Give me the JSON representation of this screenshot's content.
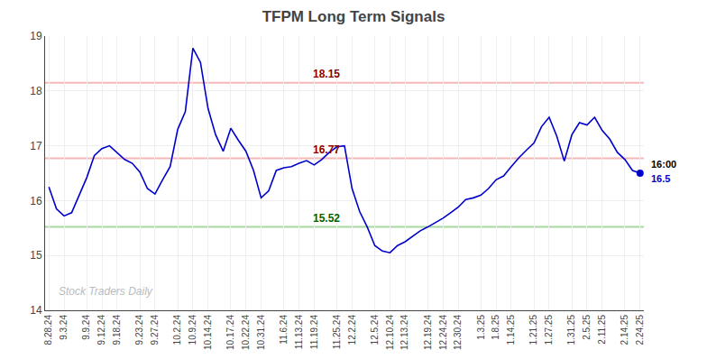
{
  "chart_data": {
    "type": "line",
    "title": "TFPM Long Term Signals",
    "categories": [
      "8.28.24",
      null,
      "9.3.24",
      null,
      null,
      "9.9.24",
      null,
      "9.12.24",
      null,
      "9.18.24",
      null,
      null,
      "9.23.24",
      null,
      "9.27.24",
      null,
      null,
      "10.2.24",
      null,
      "10.9.24",
      null,
      "10.14.24",
      null,
      null,
      "10.17.24",
      null,
      "10.22.24",
      null,
      "10.31.24",
      null,
      null,
      "11.6.24",
      null,
      "11.13.24",
      null,
      "11.19.24",
      null,
      null,
      "11.25.24",
      null,
      "12.2.24",
      null,
      null,
      "12.5.24",
      null,
      "12.10.24",
      null,
      "12.13.24",
      null,
      null,
      "12.19.24",
      null,
      "12.24.24",
      null,
      "12.30.24",
      null,
      null,
      "1.3.25",
      null,
      "1.8.25",
      null,
      "1.14.25",
      null,
      null,
      "1.21.25",
      null,
      "1.27.25",
      null,
      null,
      "1.31.25",
      null,
      "2.5.25",
      null,
      "2.11.25",
      null,
      null,
      "2.14.25",
      null,
      "2.24.25"
    ],
    "values": [
      16.25,
      15.85,
      15.72,
      15.78,
      16.1,
      16.42,
      16.82,
      16.95,
      17.0,
      16.88,
      16.75,
      16.68,
      16.52,
      16.22,
      16.12,
      16.38,
      16.62,
      17.3,
      17.62,
      18.78,
      18.52,
      17.68,
      17.2,
      16.9,
      17.32,
      17.1,
      16.9,
      16.55,
      16.05,
      16.18,
      16.55,
      16.6,
      16.62,
      16.68,
      16.73,
      16.65,
      16.75,
      16.88,
      16.98,
      17.0,
      16.22,
      15.8,
      15.52,
      15.18,
      15.08,
      15.05,
      15.18,
      15.25,
      15.35,
      15.45,
      15.52,
      15.6,
      15.68,
      15.78,
      15.88,
      16.02,
      16.05,
      16.1,
      16.22,
      16.38,
      16.45,
      16.62,
      16.78,
      16.92,
      17.05,
      17.35,
      17.52,
      17.18,
      16.72,
      17.2,
      17.42,
      17.38,
      17.52,
      17.28,
      17.12,
      16.88,
      16.75,
      16.55,
      16.5
    ],
    "color": "#0000cc",
    "hlines": [
      {
        "value": 18.15,
        "color": "#f5b8b8",
        "label_color": "#8b0000"
      },
      {
        "value": 16.77,
        "color": "#f5b8b8",
        "label_color": "#8b0000"
      },
      {
        "value": 15.52,
        "color": "#a8d8a0",
        "label_color": "#006400"
      }
    ],
    "last_point": {
      "label": "16:00",
      "value": 16.5,
      "color": "#0000cc"
    },
    "watermark": {
      "text": "Stock Traders Daily",
      "color": "#bbbbbb"
    },
    "ylim": [
      14,
      19
    ],
    "yticks": [
      14,
      15,
      16,
      17,
      18,
      19
    ],
    "grid": true
  }
}
